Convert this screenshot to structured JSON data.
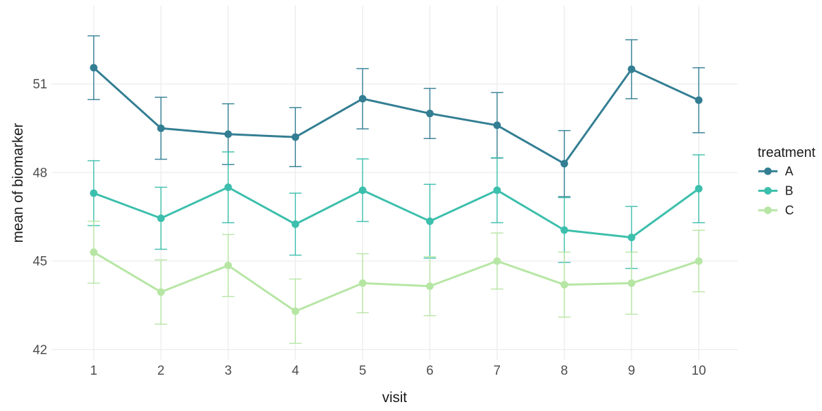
{
  "chart_data": {
    "type": "line",
    "title": "",
    "xlabel": "visit",
    "ylabel": "mean of biomarker",
    "legend_title": "treatment",
    "legend_position": "right",
    "grid": "major gridlines only, light gray on white background",
    "error_bars": "vertical error bars with caps on every point (approx. +/- 1 unit, per-point values in series[].se)",
    "x": [
      1,
      2,
      3,
      4,
      5,
      6,
      7,
      8,
      9,
      10
    ],
    "x_tick_labels": [
      "1",
      "2",
      "3",
      "4",
      "5",
      "6",
      "7",
      "8",
      "9",
      "10"
    ],
    "y_ticks": [
      42,
      45,
      48,
      51
    ],
    "y_tick_labels": [
      "42",
      "45",
      "48",
      "51"
    ],
    "xlim": [
      0.37,
      10.58
    ],
    "ylim": [
      41.66,
      53.66
    ],
    "series": [
      {
        "name": "A",
        "color": "#337E93",
        "values": [
          51.55,
          49.5,
          49.3,
          49.2,
          50.5,
          50.0,
          49.6,
          48.3,
          51.5,
          50.45
        ],
        "se": [
          1.08,
          1.05,
          1.03,
          1.0,
          1.02,
          0.85,
          1.11,
          1.12,
          1.0,
          1.1
        ]
      },
      {
        "name": "B",
        "color": "#3CBFAC",
        "values": [
          47.3,
          46.45,
          47.5,
          46.25,
          47.4,
          46.35,
          47.4,
          46.05,
          45.8,
          47.45
        ],
        "se": [
          1.1,
          1.05,
          1.2,
          1.05,
          1.06,
          1.25,
          1.1,
          1.1,
          1.05,
          1.15
        ]
      },
      {
        "name": "C",
        "color": "#B6E6A4",
        "values": [
          45.3,
          43.95,
          44.85,
          43.3,
          44.25,
          44.15,
          45.0,
          44.2,
          44.25,
          45.0
        ],
        "se": [
          1.05,
          1.09,
          1.05,
          1.09,
          1.0,
          1.0,
          0.95,
          1.1,
          1.05,
          1.04
        ]
      }
    ],
    "styles": {
      "background": "#FFFFFF",
      "grid_color": "#ECECEC",
      "tick_label_color": "#4D4D4D",
      "axis_title_color": "#1A1A1A",
      "legend_text_color": "#1A1A1A"
    }
  }
}
